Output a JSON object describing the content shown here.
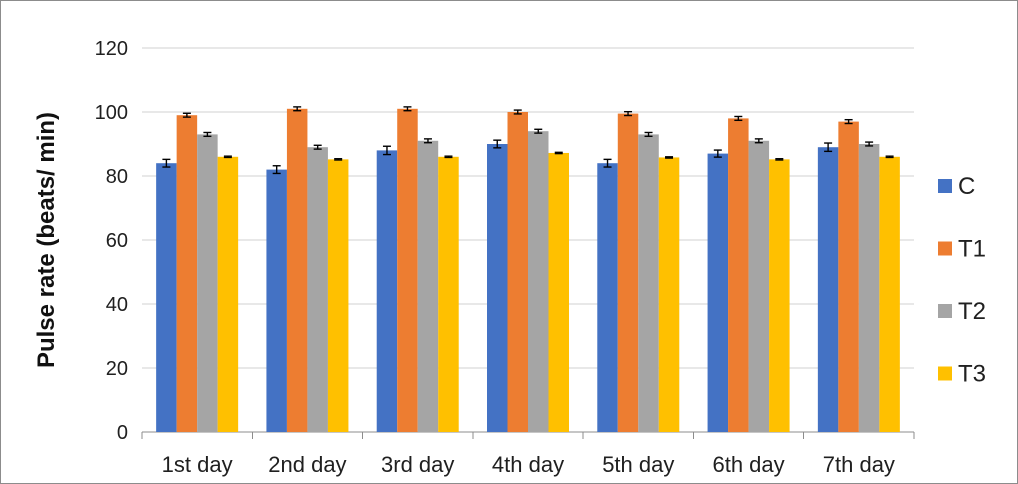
{
  "chart_data": {
    "type": "bar",
    "title": "",
    "xlabel": "",
    "ylabel": "Pulse rate (beats/ min)",
    "ylim": [
      0,
      120
    ],
    "yticks": [
      0,
      20,
      40,
      60,
      80,
      100,
      120
    ],
    "grid": true,
    "legend_position": "right",
    "categories": [
      "1st day",
      "2nd day",
      "3rd day",
      "4th day",
      "5th day",
      "6th day",
      "7th day"
    ],
    "series": [
      {
        "name": "C",
        "color": "#4472C4",
        "values": [
          84,
          82,
          88,
          90,
          84,
          87,
          89
        ],
        "errors": [
          1.2,
          1.2,
          1.3,
          1.2,
          1.2,
          1.1,
          1.3
        ]
      },
      {
        "name": "T1",
        "color": "#ED7D31",
        "values": [
          99,
          101,
          101,
          100,
          99.5,
          98,
          97
        ],
        "errors": [
          0.6,
          0.6,
          0.6,
          0.6,
          0.6,
          0.6,
          0.6
        ]
      },
      {
        "name": "T2",
        "color": "#A5A5A5",
        "values": [
          93,
          89,
          91,
          94,
          93,
          91,
          90
        ],
        "errors": [
          0.6,
          0.6,
          0.6,
          0.6,
          0.6,
          0.6,
          0.6
        ]
      },
      {
        "name": "T3",
        "color": "#FFC000",
        "values": [
          86,
          85.2,
          86,
          87.2,
          85.8,
          85.2,
          86
        ],
        "errors": [
          0.2,
          0.2,
          0.2,
          0.2,
          0.2,
          0.2,
          0.2
        ]
      }
    ]
  }
}
